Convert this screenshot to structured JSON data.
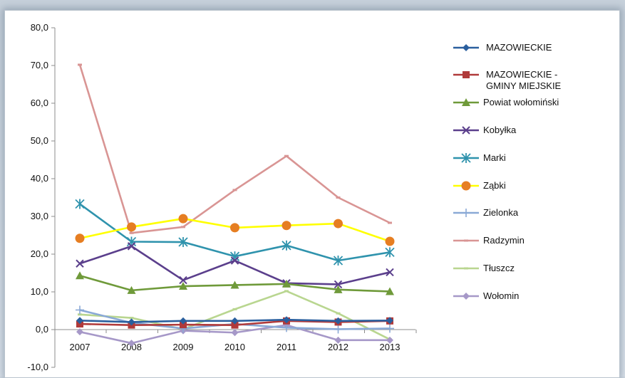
{
  "chart_data": {
    "type": "line",
    "categories": [
      "2007",
      "2008",
      "2009",
      "2010",
      "2011",
      "2012",
      "2013"
    ],
    "ylim": [
      -10,
      80
    ],
    "yticks": [
      "80,0",
      "70,0",
      "60,0",
      "50,0",
      "40,0",
      "30,0",
      "20,0",
      "10,0",
      "0,0",
      "-10,0"
    ],
    "ytick_values": [
      80,
      70,
      60,
      50,
      40,
      30,
      20,
      10,
      0,
      -10
    ],
    "grid": false,
    "legend_position": "right",
    "series": [
      {
        "name": "MAZOWIECKIE",
        "color": "#2a5f9e",
        "marker": "diamond",
        "values": [
          2.4,
          2.0,
          2.3,
          2.3,
          2.6,
          2.3,
          2.4
        ]
      },
      {
        "name": "MAZOWIECKIE - GMINY MIEJSKIE",
        "color": "#b03a3a",
        "marker": "square",
        "values": [
          1.5,
          1.2,
          1.3,
          1.2,
          2.3,
          2.0,
          2.3
        ]
      },
      {
        "name": "Powiat wołomiński",
        "color": "#6f9a3a",
        "marker": "triangle",
        "values": [
          14.3,
          10.4,
          11.5,
          11.8,
          12.1,
          10.6,
          10.1
        ]
      },
      {
        "name": "Kobyłka",
        "color": "#5b3f8c",
        "marker": "x",
        "values": [
          17.5,
          22.1,
          13.1,
          18.3,
          12.3,
          12.0,
          15.2
        ]
      },
      {
        "name": "Marki",
        "color": "#2f93ad",
        "marker": "asterisk",
        "values": [
          33.3,
          23.3,
          23.2,
          19.4,
          22.3,
          18.3,
          20.5
        ]
      },
      {
        "name": "Ząbki",
        "color": "#ffff00",
        "marker": "circle",
        "values": [
          24.2,
          27.2,
          29.4,
          27.0,
          27.6,
          28.1,
          23.4
        ]
      },
      {
        "name": "Zielonka",
        "color": "#8aa9d6",
        "marker": "plus",
        "values": [
          5.2,
          1.8,
          0.3,
          1.5,
          0.5,
          0.1,
          0.3
        ]
      },
      {
        "name": "Radzymin",
        "color": "#d99594",
        "marker": "dash",
        "values": [
          70.2,
          25.6,
          27.2,
          37.0,
          46.0,
          35.0,
          28.3
        ]
      },
      {
        "name": "Tłuszcz",
        "color": "#b9d690",
        "marker": "dash",
        "values": [
          4.0,
          3.1,
          0.1,
          5.4,
          10.2,
          4.3,
          -2.6
        ]
      },
      {
        "name": "Wołomin",
        "color": "#a698c8",
        "marker": "diamond",
        "values": [
          -0.6,
          -3.6,
          -0.3,
          -0.8,
          1.2,
          -2.8,
          -2.8
        ]
      }
    ]
  },
  "legend_lines": {
    "MAZOWIECKIE": [
      "MAZOWIECKIE"
    ],
    "MAZOWIECKIE - GMINY MIEJSKIE": [
      "MAZOWIECKIE -",
      "GMINY MIEJSKIE"
    ],
    "Powiat wołomiński": [
      "Powiat wołomiński"
    ],
    "Kobyłka": [
      "Kobyłka"
    ],
    "Marki": [
      "Marki"
    ],
    "Ząbki": [
      "Ząbki"
    ],
    "Zielonka": [
      "Zielonka"
    ],
    "Radzymin": [
      "Radzymin"
    ],
    "Tłuszcz": [
      "Tłuszcz"
    ],
    "Wołomin": [
      "Wołomin"
    ]
  }
}
